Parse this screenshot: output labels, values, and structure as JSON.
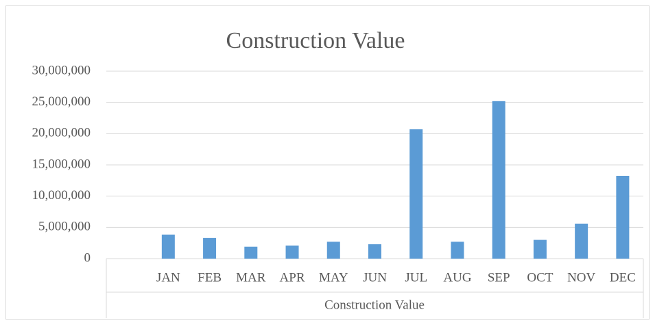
{
  "chart_data": {
    "type": "bar",
    "title": "Construction Value",
    "x_label": "Construction Value",
    "categories": [
      null,
      "JAN",
      "FEB",
      "MAR",
      "APR",
      "MAY",
      "JUN",
      "JUL",
      "AUG",
      "SEP",
      "OCT",
      "NOV",
      "DEC"
    ],
    "values": [
      null,
      3850000,
      3300000,
      1900000,
      2100000,
      2700000,
      2300000,
      20700000,
      2700000,
      25200000,
      3000000,
      5600000,
      13250000
    ],
    "color": "#5b9bd5",
    "ylim": [
      0,
      30000000
    ],
    "yticks": [
      0,
      {
        "value": 5000000,
        "label": "5,000,000"
      },
      {
        "value": 10000000,
        "label": "10,000,000"
      },
      {
        "value": 15000000,
        "label": "15,000,000"
      },
      {
        "value": 20000000,
        "label": "20,000,000"
      },
      {
        "value": 25000000,
        "label": "25,000,000"
      },
      {
        "value": 30000000,
        "label": "30,000,000"
      }
    ],
    "grid": true
  }
}
